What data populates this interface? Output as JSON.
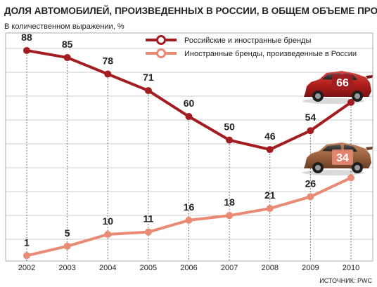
{
  "chart_data": {
    "type": "line",
    "title": "ДОЛЯ АВТОМОБИЛЕЙ, ПРОИЗВЕДЕННЫХ В РОССИИ, В ОБЩЕМ ОБЪЕМЕ ПРОДАЖ",
    "subtitle": "В количественном выражении, %",
    "categories": [
      "2002",
      "2003",
      "2004",
      "2005",
      "2006",
      "2007",
      "2008",
      "2009",
      "2010"
    ],
    "series": [
      {
        "name": "Российские и иностранные бренды",
        "color": "#a31d20",
        "values": [
          88,
          85,
          78,
          71,
          60,
          50,
          46,
          54,
          66
        ],
        "labels": [
          "88",
          "85",
          "78",
          "71",
          "60",
          "50",
          "46",
          "54",
          "66"
        ]
      },
      {
        "name": "Иностранные бренды, произведенные в России",
        "color": "#e98a74",
        "values": [
          1,
          5,
          10,
          11,
          16,
          18,
          21,
          26,
          34
        ],
        "labels": [
          "1",
          "5",
          "10",
          "11",
          "16",
          "18",
          "21",
          "26",
          "34"
        ]
      }
    ],
    "ylim": [
      -1,
      99
    ],
    "grid": true,
    "legend": "top-right",
    "source": "ИСТОЧНИК: PWC"
  },
  "decorations": {
    "car_icons": [
      "red-sedan-icon",
      "brown-sedan-icon"
    ],
    "background": "#ffffff"
  }
}
